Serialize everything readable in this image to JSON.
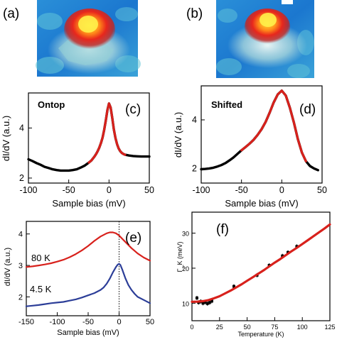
{
  "panel_labels": {
    "a": "(a)",
    "b": "(b)",
    "c": "(c)",
    "d": "(d)",
    "e": "(e)",
    "f": "(f)"
  },
  "chart_data": [
    {
      "id": "c",
      "type": "line",
      "annotation": "Ontop",
      "xlabel": "Sample bias (mV)",
      "ylabel": "dI/dV (a.u.)",
      "xlim": [
        -100,
        50
      ],
      "ylim": [
        1.8,
        5.4
      ],
      "xticks": [
        -100,
        -50,
        0,
        50
      ],
      "yticks": [
        2,
        4
      ],
      "grid": false,
      "series": [
        {
          "role": "data",
          "color": "#000000",
          "x": [
            -100,
            -95,
            -90,
            -85,
            -80,
            -75,
            -70,
            -65,
            -60,
            -55,
            -50,
            -45,
            -40,
            -35,
            -30,
            -25,
            -22,
            -20,
            -18,
            -16,
            -14,
            -12,
            -10,
            -8,
            -6,
            -4,
            -2,
            0,
            2,
            4,
            6,
            8,
            10,
            12,
            14,
            16,
            18,
            20,
            25,
            30,
            35,
            40,
            45,
            50
          ],
          "y": [
            2.75,
            2.68,
            2.6,
            2.53,
            2.45,
            2.4,
            2.35,
            2.32,
            2.3,
            2.3,
            2.3,
            2.32,
            2.35,
            2.42,
            2.5,
            2.62,
            2.7,
            2.78,
            2.86,
            2.96,
            3.08,
            3.22,
            3.4,
            3.62,
            3.92,
            4.3,
            4.72,
            4.98,
            4.82,
            4.4,
            3.95,
            3.6,
            3.35,
            3.18,
            3.07,
            3.0,
            2.96,
            2.93,
            2.9,
            2.88,
            2.87,
            2.86,
            2.86,
            2.86
          ]
        },
        {
          "role": "fit",
          "color": "#d8211c",
          "x": [
            -25,
            -22,
            -20,
            -18,
            -16,
            -14,
            -12,
            -10,
            -8,
            -6,
            -4,
            -2,
            0,
            2,
            4,
            6,
            8,
            10,
            12,
            14,
            16,
            18,
            20
          ],
          "y": [
            2.62,
            2.7,
            2.78,
            2.86,
            2.96,
            3.08,
            3.22,
            3.4,
            3.62,
            3.92,
            4.3,
            4.72,
            4.98,
            4.82,
            4.4,
            3.95,
            3.6,
            3.35,
            3.18,
            3.07,
            3.0,
            2.96,
            2.93
          ]
        }
      ]
    },
    {
      "id": "d",
      "type": "line",
      "annotation": "Shifted",
      "xlabel": "Sample bias (mV)",
      "ylabel": "dI/dV (a.u.)",
      "xlim": [
        -100,
        50
      ],
      "ylim": [
        1.4,
        5.4
      ],
      "xticks": [
        -100,
        -50,
        0,
        50
      ],
      "yticks": [
        2,
        4
      ],
      "grid": false,
      "series": [
        {
          "role": "data",
          "color": "#000000",
          "x": [
            -100,
            -95,
            -90,
            -85,
            -80,
            -75,
            -70,
            -65,
            -60,
            -55,
            -50,
            -45,
            -40,
            -35,
            -30,
            -25,
            -20,
            -15,
            -10,
            -5,
            0,
            5,
            10,
            15,
            20,
            25,
            30,
            35,
            40,
            45
          ],
          "y": [
            1.97,
            1.98,
            2.0,
            2.03,
            2.08,
            2.14,
            2.22,
            2.33,
            2.45,
            2.6,
            2.75,
            2.88,
            3.02,
            3.18,
            3.38,
            3.62,
            3.92,
            4.3,
            4.72,
            5.05,
            5.2,
            5.0,
            4.5,
            3.9,
            3.2,
            2.65,
            2.3,
            2.1,
            2.0,
            1.93
          ]
        },
        {
          "role": "fit",
          "color": "#d8211c",
          "x": [
            -50,
            -45,
            -40,
            -35,
            -30,
            -25,
            -20,
            -15,
            -10,
            -5,
            0,
            5,
            10,
            15,
            20,
            25,
            30
          ],
          "y": [
            2.75,
            2.88,
            3.02,
            3.18,
            3.38,
            3.62,
            3.92,
            4.3,
            4.72,
            5.05,
            5.2,
            5.0,
            4.5,
            3.9,
            3.2,
            2.65,
            2.3
          ]
        }
      ]
    },
    {
      "id": "e",
      "type": "line",
      "xlabel": "Sample bias (mV)",
      "ylabel": "dI/dV (a.u.)",
      "xlim": [
        -150,
        50
      ],
      "ylim": [
        1.4,
        4.4
      ],
      "xticks": [
        -150,
        -100,
        -50,
        0,
        50
      ],
      "yticks": [
        2,
        3,
        4
      ],
      "grid": false,
      "vline_x": 0,
      "series": [
        {
          "name": "80 K",
          "color": "#d8211c",
          "x": [
            -150,
            -140,
            -130,
            -120,
            -110,
            -100,
            -90,
            -80,
            -70,
            -60,
            -50,
            -40,
            -30,
            -20,
            -15,
            -10,
            -5,
            0,
            5,
            10,
            20,
            30,
            40,
            50
          ],
          "y": [
            2.95,
            2.97,
            3.0,
            3.03,
            3.07,
            3.12,
            3.18,
            3.26,
            3.36,
            3.48,
            3.62,
            3.78,
            3.92,
            4.02,
            4.05,
            4.05,
            4.02,
            3.95,
            3.85,
            3.75,
            3.55,
            3.38,
            3.25,
            3.15
          ]
        },
        {
          "name": "4.5 K",
          "color": "#2c3e98",
          "x": [
            -150,
            -140,
            -130,
            -120,
            -110,
            -100,
            -90,
            -80,
            -70,
            -60,
            -50,
            -40,
            -30,
            -25,
            -20,
            -15,
            -10,
            -5,
            -2,
            0,
            2,
            5,
            10,
            15,
            20,
            25,
            30,
            40,
            50
          ],
          "y": [
            1.7,
            1.72,
            1.74,
            1.77,
            1.8,
            1.82,
            1.84,
            1.88,
            1.92,
            1.98,
            2.05,
            2.12,
            2.22,
            2.3,
            2.42,
            2.58,
            2.78,
            2.95,
            3.03,
            3.05,
            3.02,
            2.88,
            2.6,
            2.38,
            2.22,
            2.1,
            2.0,
            1.9,
            1.8
          ]
        }
      ]
    },
    {
      "id": "f",
      "type": "scatter",
      "xlabel": "Temperature (K)",
      "ylabel": "Γ_K (meV)",
      "xlim": [
        0,
        125
      ],
      "ylim": [
        5,
        36
      ],
      "xticks": [
        0,
        25,
        50,
        75,
        100,
        125
      ],
      "yticks": [
        10,
        20,
        30
      ],
      "grid": false,
      "series": [
        {
          "role": "data",
          "color": "#000000",
          "x": [
            4.5,
            6,
            8,
            10,
            12,
            14,
            16,
            18,
            38,
            59,
            70,
            82,
            87,
            95
          ],
          "y": [
            11.5,
            10.2,
            10.5,
            10.0,
            10.3,
            9.9,
            10.2,
            10.6,
            14.8,
            18.0,
            20.8,
            23.5,
            24.5,
            26.2
          ]
        },
        {
          "role": "fit",
          "color": "#d8211c",
          "x": [
            0,
            5,
            10,
            15,
            20,
            25,
            30,
            35,
            40,
            45,
            50,
            55,
            60,
            65,
            70,
            75,
            80,
            85,
            90,
            95,
            100,
            105,
            110,
            115,
            120,
            125
          ],
          "y": [
            10.4,
            10.45,
            10.6,
            10.9,
            11.4,
            12.0,
            12.8,
            13.6,
            14.5,
            15.4,
            16.4,
            17.4,
            18.4,
            19.4,
            20.5,
            21.6,
            22.6,
            23.7,
            24.8,
            25.8,
            26.9,
            28.0,
            29.1,
            30.2,
            31.3,
            32.5
          ]
        }
      ]
    }
  ]
}
